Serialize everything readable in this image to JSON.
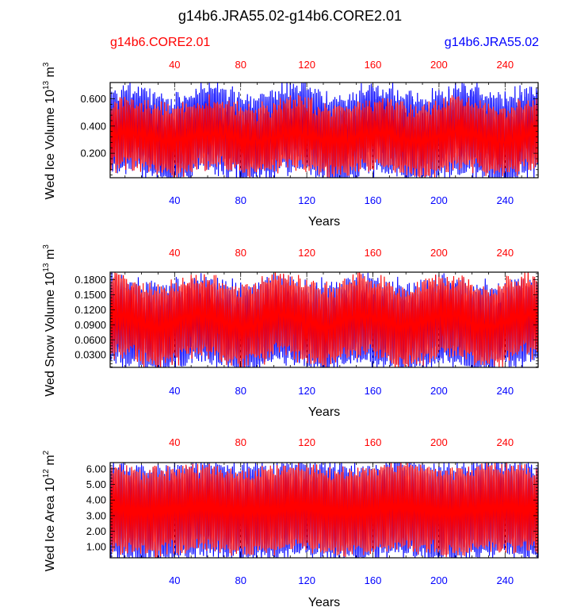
{
  "title": "g14b6.JRA55.02-g14b6.CORE2.01",
  "legend": {
    "left_label": "g14b6.CORE2.01",
    "right_label": "g14b6.JRA55.02",
    "left_color": "#ff0000",
    "right_color": "#0000ff"
  },
  "chart_data": [
    {
      "type": "line",
      "ylabel": "Wed Ice Volume 10",
      "ylabel_exp": "13",
      "ylabel_unit": " m",
      "ylabel_unit_exp": "3",
      "xlabel": "Years",
      "xlim": [
        1,
        260
      ],
      "ylim": [
        0.02,
        0.72
      ],
      "yticks": [
        0.2,
        0.4,
        0.6
      ],
      "ytick_labels": [
        "0.200",
        "0.400",
        "0.600"
      ],
      "xticks": [
        40,
        80,
        120,
        160,
        200,
        240
      ],
      "xtick_labels": [
        "40",
        "80",
        "120",
        "160",
        "200",
        "240"
      ],
      "series": [
        {
          "color": "#0000ff",
          "mid": 0.34,
          "amp": 0.28,
          "noise": 0.06,
          "lfp": 50,
          "lfa": 0.04
        },
        {
          "color": "#ff0000",
          "mid": 0.32,
          "amp": 0.22,
          "noise": 0.05,
          "lfp": 50,
          "lfa": 0.03
        }
      ]
    },
    {
      "type": "line",
      "ylabel": "Wed Snow Volume 10",
      "ylabel_exp": "13",
      "ylabel_unit": " m",
      "ylabel_unit_exp": "3",
      "xlabel": "Years",
      "xlim": [
        1,
        260
      ],
      "ylim": [
        0.005,
        0.195
      ],
      "yticks": [
        0.03,
        0.06,
        0.09,
        0.12,
        0.15,
        0.18
      ],
      "ytick_labels": [
        "0.0300",
        "0.0600",
        "0.0900",
        "0.1200",
        "0.1500",
        "0.1800"
      ],
      "xticks": [
        40,
        80,
        120,
        160,
        200,
        240
      ],
      "xtick_labels": [
        "40",
        "80",
        "120",
        "160",
        "200",
        "240"
      ],
      "series": [
        {
          "color": "#0000ff",
          "mid": 0.092,
          "amp": 0.078,
          "noise": 0.012,
          "lfp": 50,
          "lfa": 0.008
        },
        {
          "color": "#ff0000",
          "mid": 0.098,
          "amp": 0.07,
          "noise": 0.014,
          "lfp": 50,
          "lfa": 0.012
        }
      ]
    },
    {
      "type": "line",
      "ylabel": "Wed Ice Area 10",
      "ylabel_exp": "12",
      "ylabel_unit": " m",
      "ylabel_unit_exp": "2",
      "xlabel": "Years",
      "xlim": [
        1,
        260
      ],
      "ylim": [
        0.3,
        6.4
      ],
      "yticks": [
        1,
        2,
        3,
        4,
        5,
        6
      ],
      "ytick_labels": [
        "1.00",
        "2.00",
        "3.00",
        "4.00",
        "5.00",
        "6.00"
      ],
      "xticks": [
        40,
        80,
        120,
        160,
        200,
        240
      ],
      "xtick_labels": [
        "40",
        "80",
        "120",
        "160",
        "200",
        "240"
      ],
      "series": [
        {
          "color": "#0000ff",
          "mid": 3.3,
          "amp": 2.8,
          "noise": 0.25,
          "lfp": 60,
          "lfa": 0.15
        },
        {
          "color": "#ff0000",
          "mid": 3.4,
          "amp": 2.5,
          "noise": 0.25,
          "lfp": 60,
          "lfa": 0.15
        }
      ]
    }
  ]
}
